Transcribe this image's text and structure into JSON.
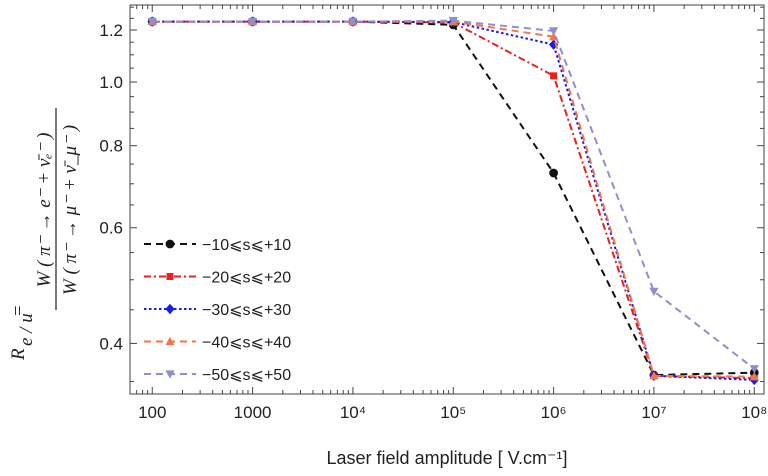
{
  "chart_data": {
    "type": "line",
    "title": "",
    "xlabel": "Laser field amplitude [ V.cm⁻¹]",
    "ylabel": {
      "lhs": "R",
      "lhs_sub": "e / u",
      "equals": "=",
      "numerator": "W ( π⁻ → e⁻ + ν̄ₑ⁻ )",
      "denominator": "W ( π⁻ → μ⁻ + ν̄_μ⁻ )"
    },
    "x_scale": "log",
    "y_scale": "log",
    "xlim": [
      60,
      125000000
    ],
    "ylim": [
      0.335,
      1.31
    ],
    "x_ticks": [
      {
        "value": 100,
        "label": "100"
      },
      {
        "value": 1000,
        "label": "1000"
      },
      {
        "value": 10000,
        "label": "10⁴"
      },
      {
        "value": 100000,
        "label": "10⁵"
      },
      {
        "value": 1000000,
        "label": "10⁶"
      },
      {
        "value": 10000000,
        "label": "10⁷"
      },
      {
        "value": 100000000,
        "label": "10⁸"
      }
    ],
    "y_ticks": [
      {
        "value": 0.4,
        "label": "0.4"
      },
      {
        "value": 0.6,
        "label": "0.6"
      },
      {
        "value": 0.8,
        "label": "0.8"
      },
      {
        "value": 1.0,
        "label": "1.0"
      },
      {
        "value": 1.2,
        "label": "1.2"
      }
    ],
    "legend_position": "bottom-left",
    "grid": false,
    "x": [
      100,
      1000,
      10000,
      100000,
      1000000,
      10000000,
      100000000
    ],
    "series": [
      {
        "name": "−10⩽s⩽+10",
        "color": "#111111",
        "dash": "7,5",
        "marker": "circle",
        "values": [
          1.236,
          1.236,
          1.236,
          1.222,
          0.727,
          0.358,
          0.361
        ]
      },
      {
        "name": "−20⩽s⩽+20",
        "color": "#e8201f",
        "dash": "7,3,2,3",
        "marker": "square",
        "values": [
          1.236,
          1.236,
          1.236,
          1.232,
          1.022,
          0.357,
          0.354
        ]
      },
      {
        "name": "−30⩽s⩽+30",
        "color": "#1a1aee",
        "dash": "2.5,2.5",
        "marker": "diamond",
        "values": [
          1.236,
          1.236,
          1.236,
          1.234,
          1.14,
          0.357,
          0.352
        ]
      },
      {
        "name": "−40⩽s⩽+40",
        "color": "#f07848",
        "dash": "7,5",
        "marker": "triangle-up",
        "values": [
          1.236,
          1.236,
          1.236,
          1.236,
          1.172,
          0.357,
          0.356
        ]
      },
      {
        "name": "−50⩽s⩽+50",
        "color": "#8f8fcc",
        "dash": "7,5",
        "marker": "triangle-down",
        "values": [
          1.236,
          1.236,
          1.236,
          1.24,
          1.196,
          0.48,
          0.366
        ]
      }
    ]
  }
}
